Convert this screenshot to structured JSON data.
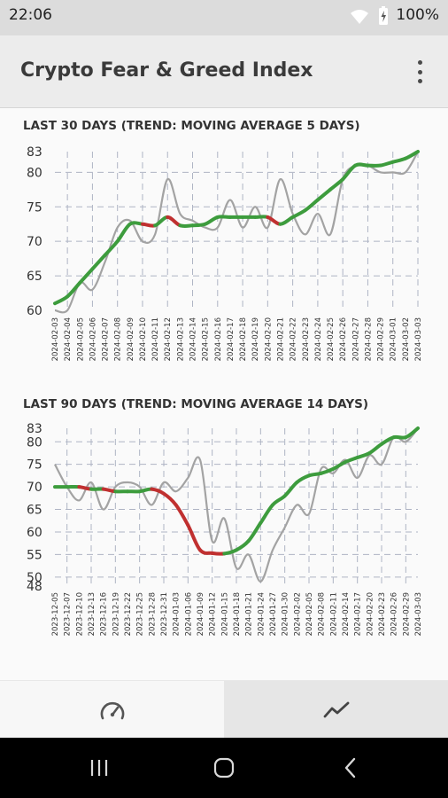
{
  "status_bar": {
    "time": "22:06",
    "battery": "100%",
    "icons": [
      "wifi-icon",
      "battery-icon"
    ]
  },
  "app_bar": {
    "title": "Crypto Fear & Greed Index",
    "menu_icon": "more-vert-icon"
  },
  "colors": {
    "trend_up": "#3d9c3d",
    "trend_down": "#c03030",
    "daily": "#a3a3a3",
    "grid": "#aeb4c4"
  },
  "chart_data": [
    {
      "type": "line",
      "title": "LAST 30 DAYS (TREND: MOVING AVERAGE 5 DAYS)",
      "y_ticks": [
        60,
        65,
        70,
        75,
        80,
        83
      ],
      "ylim": [
        60,
        83
      ],
      "x": [
        "2024-02-03",
        "2024-02-04",
        "2024-02-05",
        "2024-02-06",
        "2024-02-07",
        "2024-02-08",
        "2024-02-09",
        "2024-02-10",
        "2024-02-11",
        "2024-02-12",
        "2024-02-13",
        "2024-02-14",
        "2024-02-15",
        "2024-02-16",
        "2024-02-17",
        "2024-02-18",
        "2024-02-19",
        "2024-02-20",
        "2024-02-21",
        "2024-02-22",
        "2024-02-23",
        "2024-02-24",
        "2024-02-25",
        "2024-02-26",
        "2024-02-27",
        "2024-02-28",
        "2024-02-29",
        "2024-03-01",
        "2024-03-02",
        "2024-03-03"
      ],
      "series": [
        {
          "values": [
            60,
            60,
            64,
            63,
            67,
            72,
            73,
            70,
            71,
            79,
            74,
            73,
            72,
            72,
            76,
            72,
            75,
            72,
            79,
            74,
            71,
            74,
            71,
            79,
            81,
            81,
            80,
            80,
            80,
            83
          ]
        },
        {
          "values": [
            61,
            62,
            64,
            66,
            68,
            70,
            72.5,
            72.5,
            72.3,
            73.5,
            72.3,
            72.3,
            72.5,
            73.5,
            73.5,
            73.5,
            73.5,
            73.5,
            72.5,
            73.5,
            74.5,
            76,
            77.5,
            79,
            81,
            81,
            81,
            81.5,
            82,
            83
          ]
        }
      ]
    },
    {
      "type": "line",
      "title": "LAST 90 DAYS (TREND: MOVING AVERAGE 14 DAYS)",
      "y_ticks": [
        48,
        50,
        55,
        60,
        65,
        70,
        75,
        80,
        83
      ],
      "ylim": [
        48,
        83
      ],
      "x": [
        "2023-12-05",
        "2023-12-07",
        "2023-12-10",
        "2023-12-13",
        "2023-12-16",
        "2023-12-19",
        "2023-12-22",
        "2023-12-25",
        "2023-12-28",
        "2023-12-31",
        "2024-01-03",
        "2024-01-06",
        "2024-01-09",
        "2024-01-12",
        "2024-01-15",
        "2024-01-18",
        "2024-01-21",
        "2024-01-24",
        "2024-01-27",
        "2024-01-30",
        "2024-02-02",
        "2024-02-05",
        "2024-02-08",
        "2024-02-11",
        "2024-02-14",
        "2024-02-17",
        "2024-02-20",
        "2024-02-23",
        "2024-02-26",
        "2024-02-29",
        "2024-03-03"
      ],
      "series": [
        {
          "values": [
            75,
            70,
            67,
            71,
            65,
            70,
            71,
            70,
            66,
            71,
            69,
            72,
            76,
            58,
            63,
            52,
            55,
            49,
            56,
            61,
            66,
            64,
            74,
            73,
            76,
            72,
            77,
            75,
            81,
            80,
            83
          ]
        },
        {
          "values": [
            70,
            70,
            70,
            69.5,
            69.5,
            69,
            69,
            69,
            69.5,
            68.5,
            66,
            61.5,
            56,
            55.3,
            55.2,
            56,
            58,
            62,
            66,
            68,
            71,
            72.5,
            73,
            74,
            75.5,
            76.5,
            77.5,
            79.5,
            81,
            81,
            83
          ]
        }
      ]
    }
  ]
}
